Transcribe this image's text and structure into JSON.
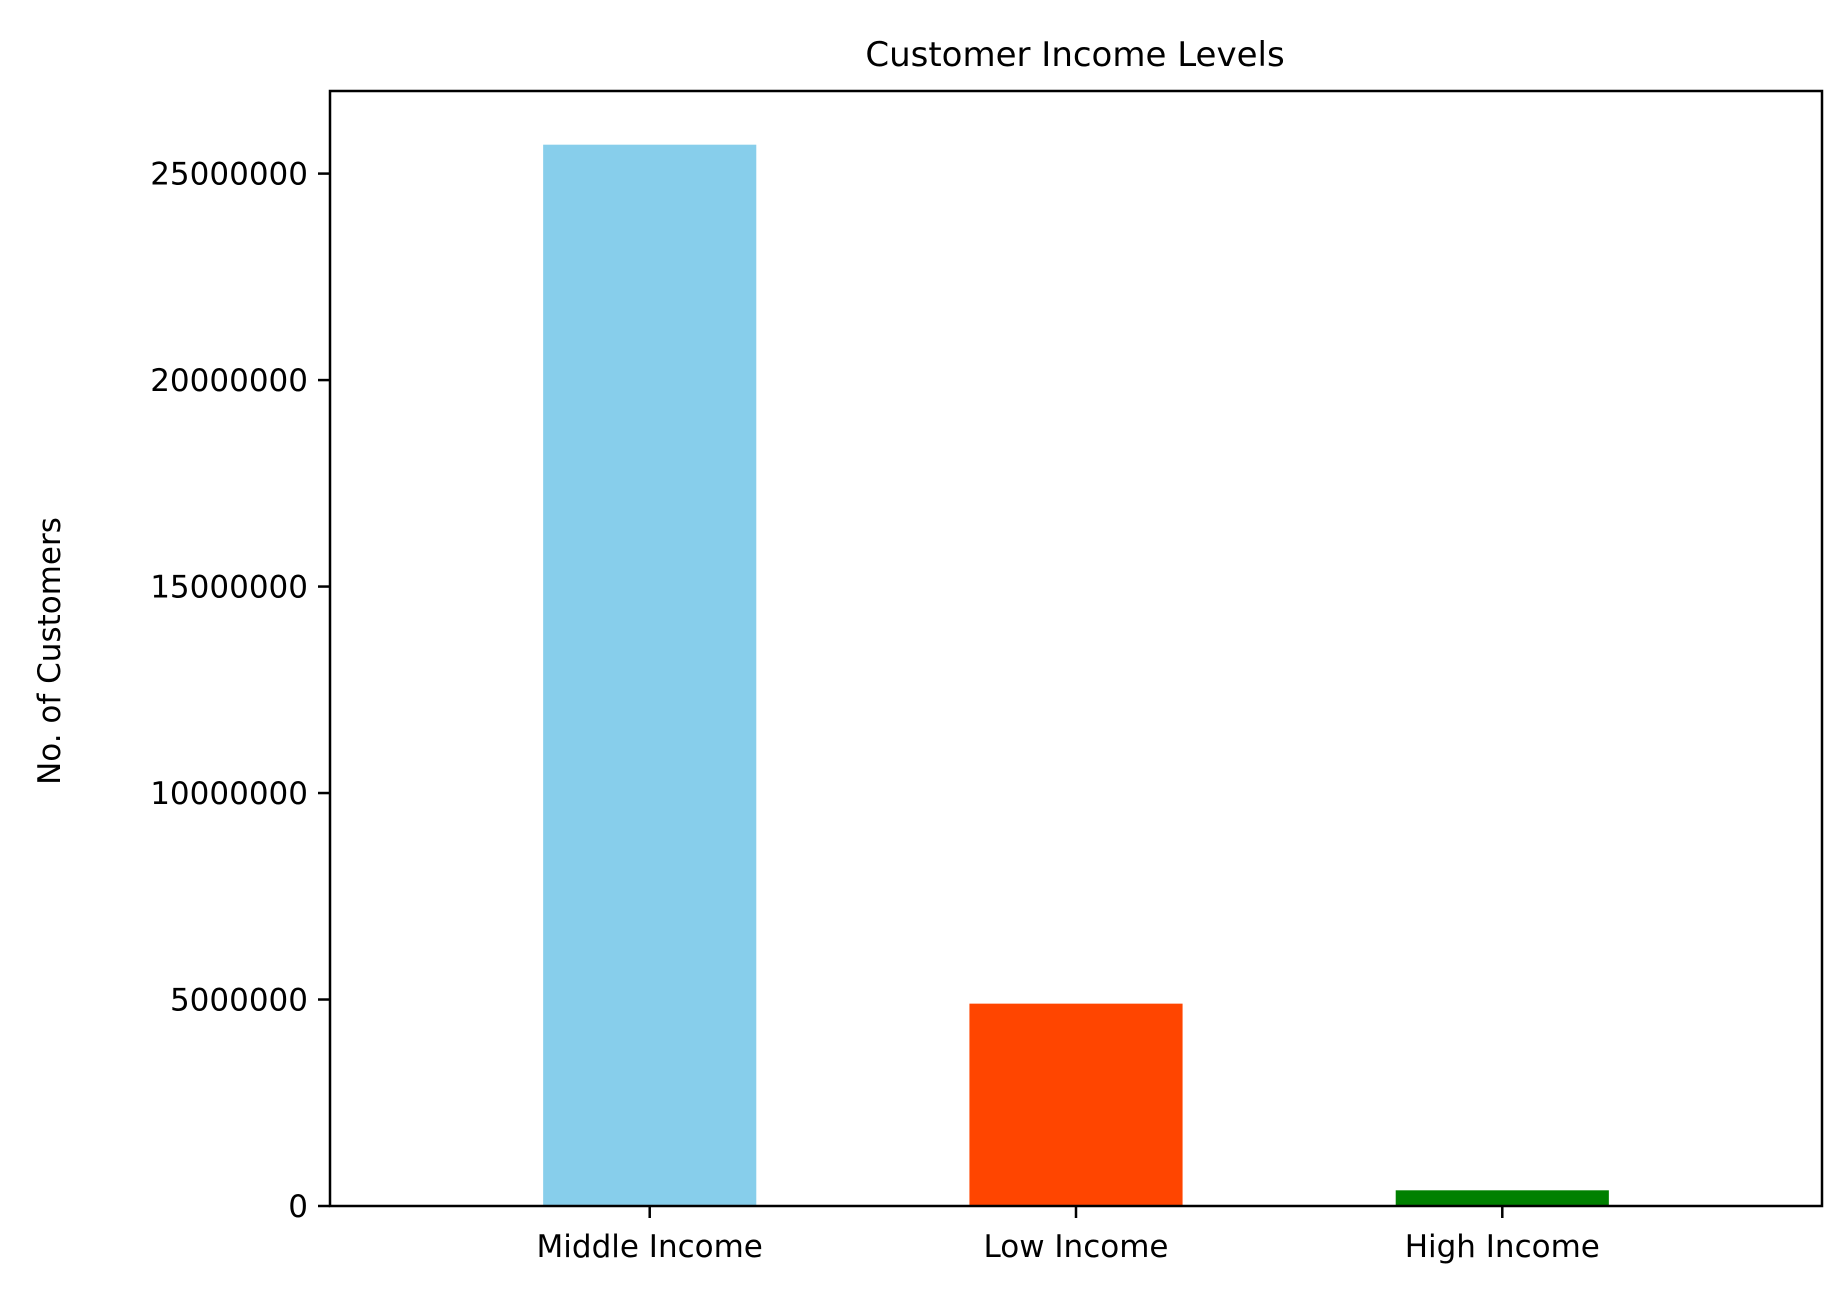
{
  "chart_data": {
    "type": "bar",
    "title": "Customer Income Levels",
    "xlabel": "",
    "ylabel": "No. of Customers",
    "categories": [
      "Middle Income",
      "Low Income",
      "High Income"
    ],
    "values": [
      25700000,
      4900000,
      380000
    ],
    "colors": [
      "#87ceeb",
      "#ff4500",
      "#008000"
    ],
    "ylim": [
      0,
      27000000
    ],
    "yticks": [
      0,
      5000000,
      10000000,
      15000000,
      20000000,
      25000000
    ],
    "ytick_labels": [
      "0",
      "5000000",
      "10000000",
      "15000000",
      "20000000",
      "25000000"
    ],
    "grid": false,
    "legend": "none"
  }
}
